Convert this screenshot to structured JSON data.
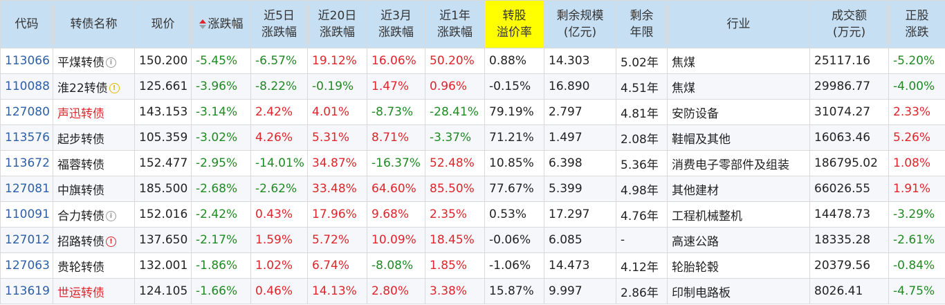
{
  "headers": [
    {
      "label": "代码",
      "sort": false,
      "highlight": false
    },
    {
      "label": "转债名称",
      "sort": false,
      "highlight": false
    },
    {
      "label": "现价",
      "sort": false,
      "highlight": false
    },
    {
      "label": "涨跌幅",
      "sort": true,
      "highlight": false
    },
    {
      "label": "近5日\n涨跌幅",
      "sort": false,
      "highlight": false
    },
    {
      "label": "近20日\n涨跌幅",
      "sort": false,
      "highlight": false
    },
    {
      "label": "近3月\n涨跌幅",
      "sort": false,
      "highlight": false
    },
    {
      "label": "近1年\n涨跌幅",
      "sort": false,
      "highlight": false
    },
    {
      "label": "转股\n溢价率",
      "sort": false,
      "highlight": true
    },
    {
      "label": "剩余规模\n(亿元)",
      "sort": false,
      "highlight": false
    },
    {
      "label": "剩余\n年限",
      "sort": false,
      "highlight": false
    },
    {
      "label": "行业",
      "sort": false,
      "highlight": false
    },
    {
      "label": "成交额\n(万元)",
      "sort": false,
      "highlight": false
    },
    {
      "label": "正股\n涨跌",
      "sort": false,
      "highlight": false
    }
  ],
  "colors": {
    "up": "#e0242b",
    "down": "#1e8a22",
    "header_bg": "#c7dff3",
    "highlight": "#ffff00",
    "code": "#2b5fa8"
  },
  "rows": [
    {
      "code": "113066",
      "name": "平煤转债",
      "icon": "info",
      "name_red": false,
      "price": "150.200",
      "chg": "-5.45%",
      "d5": "-6.57%",
      "d20": "19.12%",
      "m3": "16.06%",
      "y1": "50.20%",
      "premium": "0.88%",
      "scale": "14.303",
      "years": "5.02年",
      "industry": "焦煤",
      "amount": "25117.16",
      "stock_chg": "-5.20%"
    },
    {
      "code": "110088",
      "name": "淮22转债",
      "icon": "warn",
      "name_red": false,
      "price": "125.661",
      "chg": "-3.96%",
      "d5": "-8.22%",
      "d20": "-0.19%",
      "m3": "1.47%",
      "y1": "0.96%",
      "premium": "-0.15%",
      "scale": "16.890",
      "years": "4.51年",
      "industry": "焦煤",
      "amount": "29986.77",
      "stock_chg": "-4.00%"
    },
    {
      "code": "127080",
      "name": "声迅转债",
      "icon": "",
      "name_red": true,
      "price": "143.153",
      "chg": "-3.14%",
      "d5": "2.42%",
      "d20": "4.01%",
      "m3": "-8.73%",
      "y1": "-28.41%",
      "premium": "79.19%",
      "scale": "2.797",
      "years": "4.81年",
      "industry": "安防设备",
      "amount": "31074.27",
      "stock_chg": "2.33%"
    },
    {
      "code": "113576",
      "name": "起步转债",
      "icon": "",
      "name_red": false,
      "price": "105.359",
      "chg": "-3.02%",
      "d5": "4.26%",
      "d20": "5.31%",
      "m3": "8.71%",
      "y1": "-3.37%",
      "premium": "71.21%",
      "scale": "1.497",
      "years": "2.08年",
      "industry": "鞋帽及其他",
      "amount": "16063.46",
      "stock_chg": "5.26%"
    },
    {
      "code": "113672",
      "name": "福蓉转债",
      "icon": "",
      "name_red": false,
      "price": "152.477",
      "chg": "-2.95%",
      "d5": "-14.01%",
      "d20": "34.87%",
      "m3": "-16.37%",
      "y1": "52.48%",
      "premium": "10.85%",
      "scale": "6.398",
      "years": "5.36年",
      "industry": "消费电子零部件及组装",
      "amount": "186795.02",
      "stock_chg": "1.08%"
    },
    {
      "code": "127081",
      "name": "中旗转债",
      "icon": "",
      "name_red": false,
      "price": "185.500",
      "chg": "-2.68%",
      "d5": "-2.62%",
      "d20": "33.48%",
      "m3": "64.60%",
      "y1": "85.50%",
      "premium": "77.67%",
      "scale": "5.399",
      "years": "4.98年",
      "industry": "其他建材",
      "amount": "66026.55",
      "stock_chg": "1.91%"
    },
    {
      "code": "110091",
      "name": "合力转债",
      "icon": "info",
      "name_red": false,
      "price": "152.016",
      "chg": "-2.42%",
      "d5": "0.43%",
      "d20": "17.96%",
      "m3": "9.68%",
      "y1": "2.35%",
      "premium": "0.53%",
      "scale": "17.297",
      "years": "4.76年",
      "industry": "工程机械整机",
      "amount": "14478.73",
      "stock_chg": "-3.29%"
    },
    {
      "code": "127012",
      "name": "招路转债",
      "icon": "alert",
      "name_red": false,
      "price": "137.650",
      "chg": "-2.17%",
      "d5": "1.59%",
      "d20": "5.72%",
      "m3": "10.09%",
      "y1": "18.45%",
      "premium": "-0.06%",
      "scale": "6.085",
      "years": "-",
      "industry": "高速公路",
      "amount": "18335.28",
      "stock_chg": "-2.61%"
    },
    {
      "code": "127063",
      "name": "贵轮转债",
      "icon": "",
      "name_red": false,
      "price": "132.001",
      "chg": "-1.86%",
      "d5": "1.02%",
      "d20": "6.74%",
      "m3": "-8.08%",
      "y1": "1.85%",
      "premium": "-1.06%",
      "scale": "14.473",
      "years": "4.12年",
      "industry": "轮胎轮毂",
      "amount": "20379.56",
      "stock_chg": "-0.84%"
    },
    {
      "code": "113619",
      "name": "世运转债",
      "icon": "",
      "name_red": true,
      "price": "124.105",
      "chg": "-1.66%",
      "d5": "0.46%",
      "d20": "14.13%",
      "m3": "2.80%",
      "y1": "3.38%",
      "premium": "15.87%",
      "scale": "9.997",
      "years": "2.86年",
      "industry": "印制电路板",
      "amount": "8026.41",
      "stock_chg": "-4.75%"
    }
  ]
}
